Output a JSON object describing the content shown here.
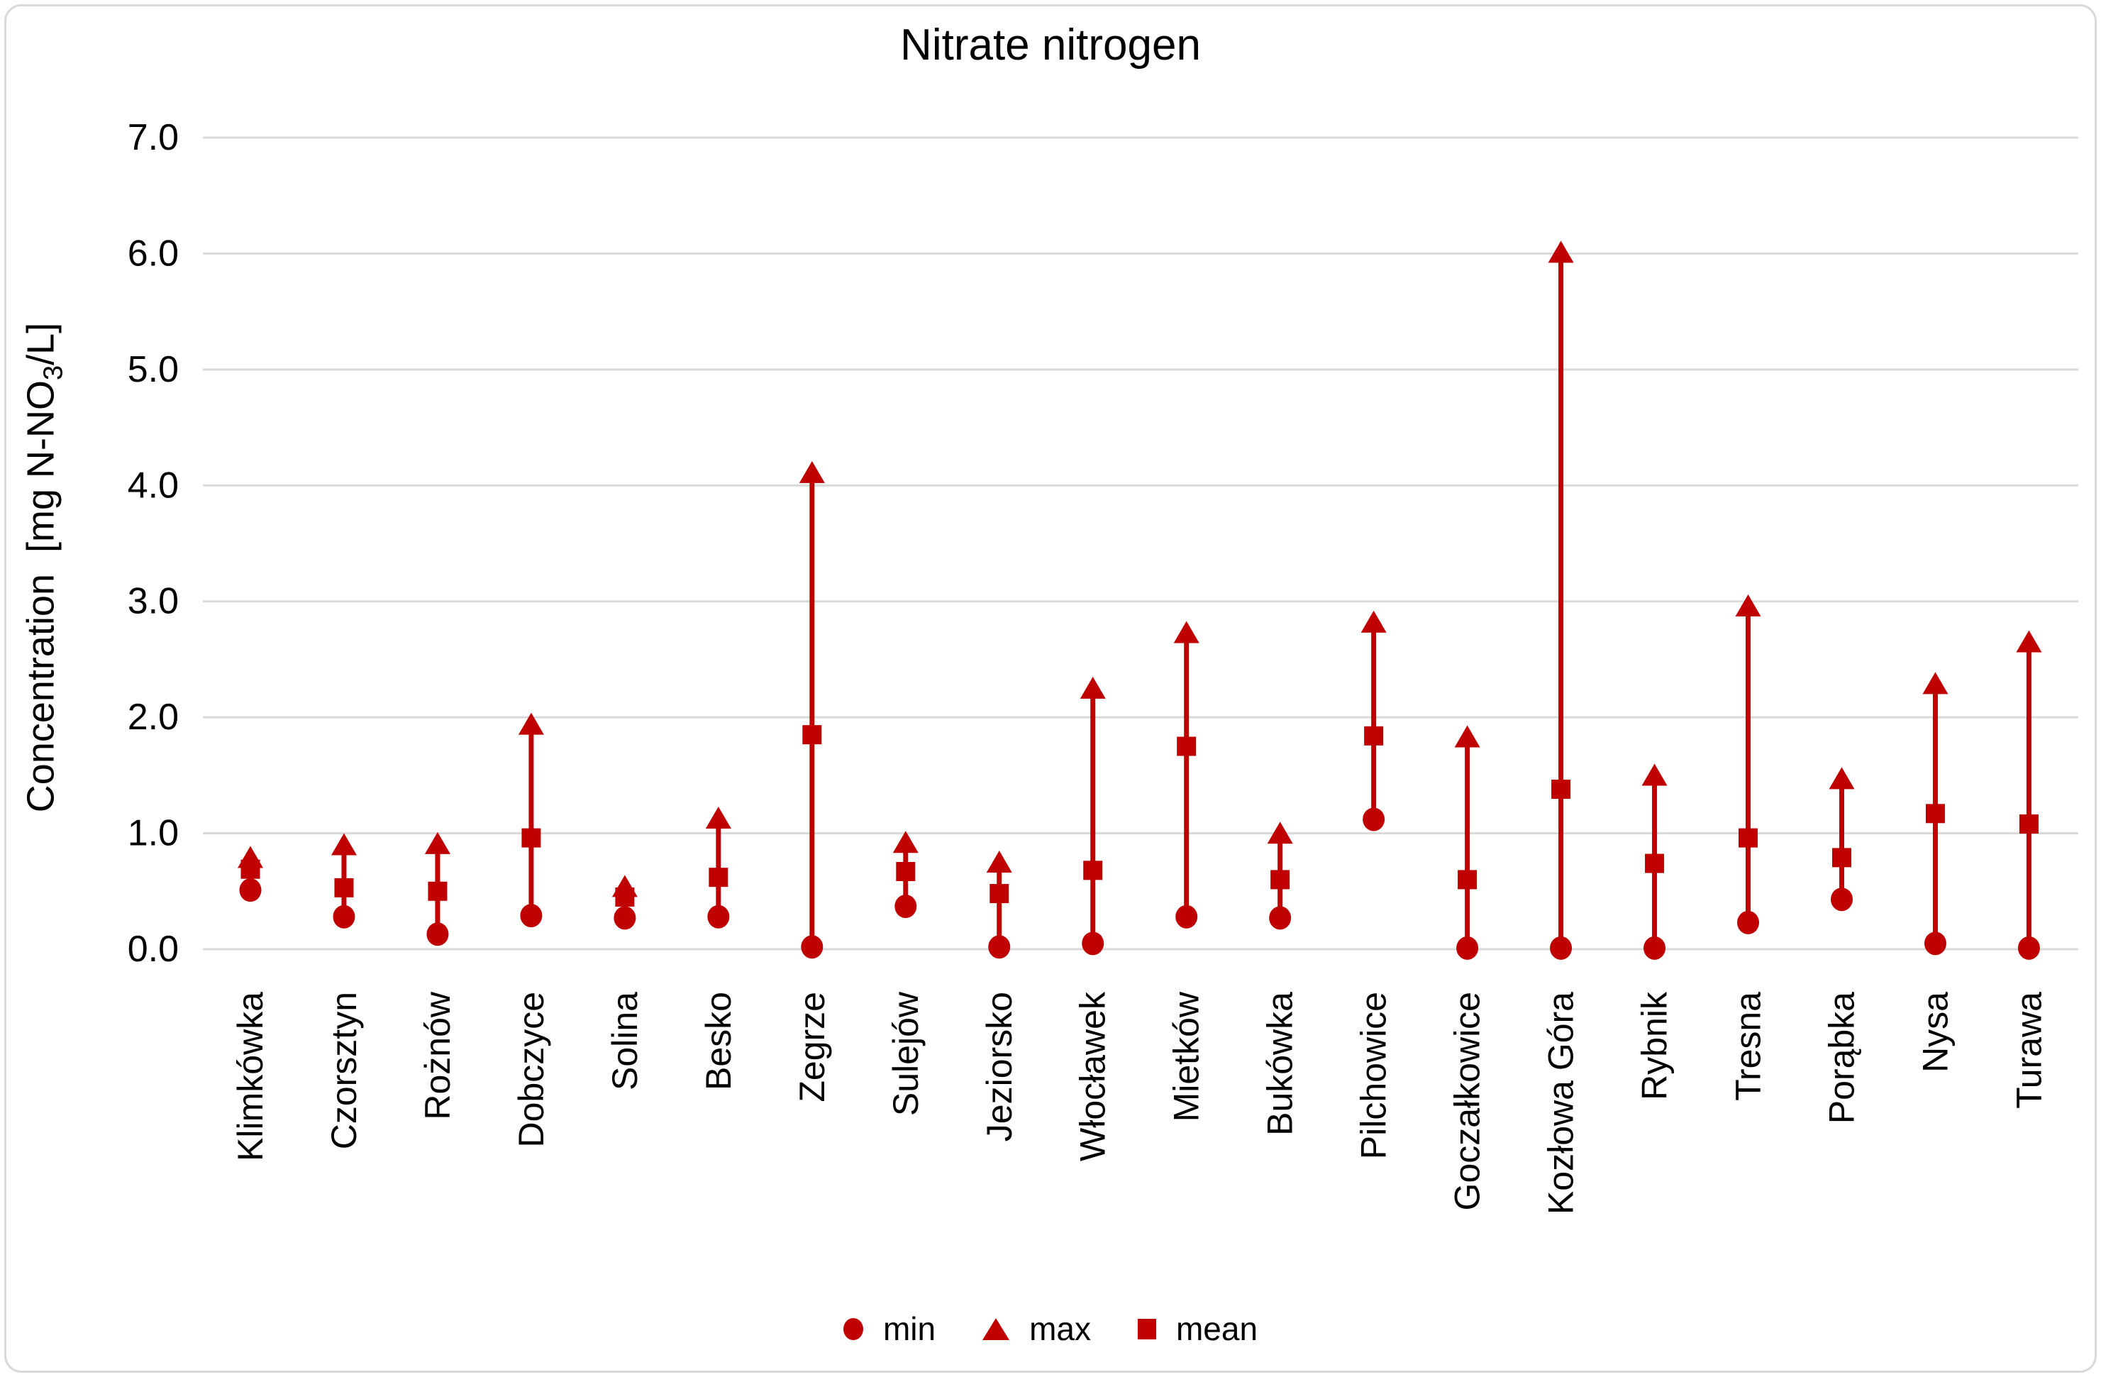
{
  "title": "Nitrate nitrogen",
  "y_axis": {
    "title_prefix": "Concentration  [mg N-NO",
    "title_sub": "3",
    "title_suffix": "/L]"
  },
  "legend": {
    "items": [
      {
        "marker": "circle",
        "label": "min"
      },
      {
        "marker": "triangle",
        "label": "max"
      },
      {
        "marker": "square",
        "label": "mean"
      }
    ]
  },
  "colors": {
    "series": "#C00000",
    "gridline": "#D9D9D9",
    "text": "#000000",
    "frame_border": "#D9D9D9",
    "background": "#FFFFFF"
  },
  "chart_data": {
    "type": "scatter",
    "title": "Nitrate nitrogen",
    "ylabel": "Concentration [mg N-NO3/L]",
    "xlabel": "",
    "ylim": [
      0,
      7
    ],
    "ytick_step": 1,
    "yticks": [
      "0.0",
      "1.0",
      "2.0",
      "3.0",
      "4.0",
      "5.0",
      "6.0",
      "7.0"
    ],
    "grid": true,
    "legend_position": "bottom",
    "categories": [
      "Klimkówka",
      "Czorsztyn",
      "Rożnów",
      "Dobczyce",
      "Solina",
      "Besko",
      "Zegrze",
      "Sulejów",
      "Jeziorsko",
      "Włocławek",
      "Mietków",
      "Bukówka",
      "Pilchowice",
      "Goczałkowice",
      "Kozłowa Góra",
      "Rybnik",
      "Tresna",
      "Porąbka",
      "Nysa",
      "Turawa"
    ],
    "series": [
      {
        "name": "min",
        "marker": "circle",
        "values": [
          0.51,
          0.28,
          0.13,
          0.29,
          0.27,
          0.28,
          0.02,
          0.37,
          0.02,
          0.05,
          0.28,
          0.27,
          1.12,
          0.01,
          0.01,
          0.01,
          0.23,
          0.43,
          0.05,
          0.01
        ]
      },
      {
        "name": "max",
        "marker": "triangle",
        "values": [
          0.78,
          0.89,
          0.9,
          1.93,
          0.53,
          1.12,
          4.1,
          0.91,
          0.74,
          2.24,
          2.72,
          0.99,
          2.81,
          1.82,
          6.0,
          1.49,
          2.95,
          1.46,
          2.28,
          2.64
        ]
      },
      {
        "name": "mean",
        "marker": "square",
        "values": [
          0.69,
          0.53,
          0.5,
          0.96,
          0.45,
          0.62,
          1.85,
          0.67,
          0.48,
          0.68,
          1.75,
          0.6,
          1.84,
          0.6,
          1.38,
          0.74,
          0.96,
          0.79,
          1.17,
          1.08
        ]
      }
    ]
  }
}
